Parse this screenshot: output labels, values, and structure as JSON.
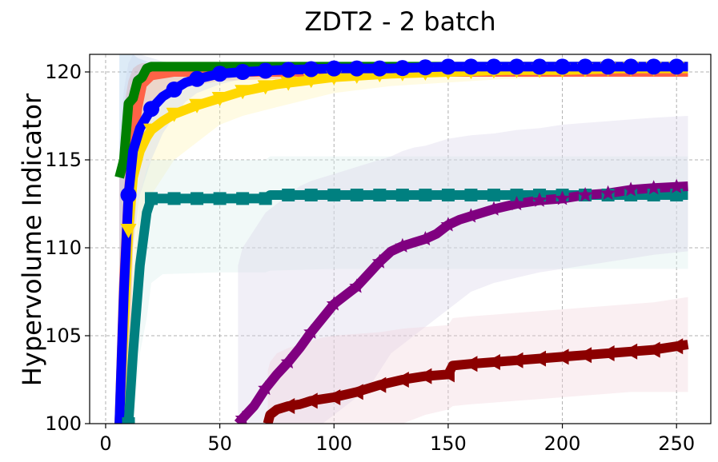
{
  "chart_data": {
    "type": "line",
    "title": "ZDT2 - 2 batch",
    "xlabel": "",
    "ylabel": "Hypervolume Indicator",
    "xlim": [
      -7,
      265
    ],
    "ylim": [
      100,
      121
    ],
    "xticks": [
      0,
      50,
      100,
      150,
      200,
      250
    ],
    "yticks": [
      100,
      105,
      110,
      115,
      120
    ],
    "grid": true,
    "legend": "none",
    "series": [
      {
        "color": "#FF6347",
        "marker": "none",
        "x": [
          6,
          8,
          10,
          12,
          14,
          16,
          20,
          30,
          50,
          100,
          150,
          200,
          255
        ],
        "y": [
          100,
          108,
          113,
          116,
          118,
          119.3,
          119.8,
          120,
          120,
          120,
          120,
          120,
          120
        ],
        "band_low": [
          100,
          100,
          100,
          110,
          114,
          116,
          118,
          119,
          119.5,
          119.7,
          119.8,
          119.8,
          119.8
        ],
        "band_high": [
          115,
          118,
          119.5,
          120.2,
          120.4,
          120.5,
          120.5,
          120.5,
          120.5,
          120.5,
          120.5,
          120.5,
          120.5
        ],
        "band_color": "#FF6347"
      },
      {
        "color": "#008000",
        "marker": "x",
        "x": [
          6,
          8,
          10,
          12,
          14,
          16,
          18,
          20,
          30,
          50,
          100,
          150,
          200,
          255
        ],
        "y": [
          114,
          115,
          118.2,
          118.5,
          119.5,
          119.7,
          120.2,
          120.3,
          120.3,
          120.3,
          120.3,
          120.3,
          120.3,
          120.3
        ],
        "band_low": [
          108,
          110,
          114,
          116,
          118,
          118.8,
          119.5,
          119.8,
          120,
          120,
          120,
          120,
          120,
          120
        ],
        "band_high": [
          121,
          121,
          121,
          121,
          120.8,
          120.7,
          120.6,
          120.5,
          120.5,
          120.5,
          120.5,
          120.5,
          120.5,
          120.5
        ],
        "band_color": "#9EC5E8"
      },
      {
        "color": "#FFD700",
        "marker": "triangle-down",
        "x": [
          6,
          10,
          12,
          15,
          18,
          20,
          25,
          30,
          40,
          50,
          60,
          75,
          100,
          125,
          150,
          175,
          200,
          225,
          255
        ],
        "y": [
          100,
          111,
          114,
          115.5,
          116.3,
          116.7,
          117.2,
          117.6,
          118.1,
          118.5,
          118.9,
          119.3,
          119.7,
          119.9,
          120,
          120.1,
          120.1,
          120.2,
          120.2
        ],
        "band_low": [
          100,
          104,
          108,
          110,
          112,
          113,
          114,
          115,
          116,
          117,
          117.5,
          118,
          118.8,
          119.2,
          119.4,
          119.6,
          119.7,
          119.8,
          119.8
        ],
        "band_high": [
          106,
          118,
          119.5,
          119.8,
          120,
          120,
          120.1,
          120.2,
          120.3,
          120.4,
          120.4,
          120.5,
          120.5,
          120.5,
          120.5,
          120.5,
          120.5,
          120.5,
          120.5
        ],
        "band_color": "#FFF3B0"
      },
      {
        "color": "#0000FF",
        "marker": "circle",
        "x": [
          6,
          8,
          10,
          12,
          15,
          20,
          25,
          30,
          35,
          40,
          50,
          60,
          75,
          100,
          125,
          150,
          175,
          200,
          225,
          255
        ],
        "y": [
          100,
          107.5,
          113,
          115.5,
          116.8,
          117.9,
          118.6,
          119,
          119.4,
          119.6,
          119.9,
          120,
          120.1,
          120.2,
          120.2,
          120.3,
          120.3,
          120.3,
          120.3,
          120.3
        ],
        "band_low": [
          100,
          100,
          104,
          110,
          113,
          115,
          116.5,
          117.5,
          118.3,
          118.8,
          119.3,
          119.6,
          119.8,
          119.9,
          120,
          120,
          120,
          120,
          120,
          120
        ],
        "band_high": [
          116,
          119,
          120.5,
          121,
          121,
          120.8,
          120.6,
          120.5,
          120.5,
          120.5,
          120.5,
          120.5,
          120.5,
          120.5,
          120.5,
          120.5,
          120.5,
          120.5,
          120.5,
          120.5
        ],
        "band_color": "#C9D3EA"
      },
      {
        "color": "#008080",
        "marker": "square",
        "x": [
          10,
          12,
          15,
          18,
          20,
          25,
          50,
          70,
          72,
          100,
          150,
          200,
          255
        ],
        "y": [
          100,
          104,
          109,
          112,
          112.8,
          112.8,
          112.8,
          112.8,
          113,
          113,
          113,
          113,
          113
        ],
        "band_low": [
          100,
          100,
          104,
          106,
          108,
          108.5,
          108.6,
          108.6,
          108.7,
          108.8,
          108.8,
          108.8,
          108.8
        ],
        "band_high": [
          104,
          108,
          113,
          114.5,
          115,
          115,
          115,
          115,
          115.2,
          115.2,
          115.2,
          115.2,
          115.2
        ],
        "band_color": "#D8EEEA"
      },
      {
        "color": "#800080",
        "marker": "star",
        "x": [
          58,
          60,
          65,
          70,
          75,
          80,
          85,
          90,
          95,
          100,
          105,
          110,
          115,
          120,
          125,
          130,
          135,
          140,
          145,
          150,
          155,
          160,
          170,
          180,
          190,
          200,
          210,
          220,
          230,
          240,
          255
        ],
        "y": [
          100,
          100.3,
          101,
          102,
          102.8,
          103.5,
          104.3,
          105.2,
          106,
          106.8,
          107.3,
          107.8,
          108.5,
          109.2,
          109.8,
          110.1,
          110.3,
          110.5,
          110.8,
          111.3,
          111.6,
          111.8,
          112.2,
          112.5,
          112.7,
          112.8,
          113,
          113.1,
          113.3,
          113.4,
          113.5
        ],
        "band_low": [
          100,
          100,
          100,
          100,
          100,
          100,
          100,
          100,
          100,
          100.5,
          101,
          101.5,
          102,
          103,
          104,
          104.5,
          105,
          105.5,
          106,
          106.5,
          107,
          107.5,
          108,
          108.3,
          108.6,
          108.8,
          109,
          109.2,
          109.4,
          109.6,
          109.8
        ],
        "band_high": [
          109,
          110,
          111,
          112,
          112.5,
          113,
          113.5,
          113.8,
          114,
          114.2,
          114.4,
          114.6,
          114.8,
          115,
          115.2,
          115.5,
          115.7,
          115.8,
          116,
          116.2,
          116.3,
          116.4,
          116.5,
          116.7,
          116.8,
          117,
          117.1,
          117.2,
          117.3,
          117.4,
          117.5
        ],
        "band_color": "#D8D2E8"
      },
      {
        "color": "#8B0000",
        "marker": "triangle-left",
        "x": [
          71,
          72,
          75,
          80,
          85,
          90,
          95,
          100,
          110,
          120,
          130,
          140,
          150,
          152,
          160,
          170,
          180,
          190,
          200,
          210,
          220,
          230,
          240,
          255
        ],
        "y": [
          100,
          100.5,
          100.8,
          101,
          101.1,
          101.3,
          101.4,
          101.5,
          101.8,
          102.2,
          102.5,
          102.7,
          102.8,
          103.3,
          103.4,
          103.5,
          103.6,
          103.7,
          103.8,
          103.9,
          104,
          104.1,
          104.2,
          104.5
        ],
        "band_low": [
          100,
          100,
          100,
          100,
          100,
          100,
          100,
          100,
          100,
          100,
          100,
          100.5,
          100.8,
          101,
          101.1,
          101.2,
          101.3,
          101.4,
          101.5,
          101.6,
          101.7,
          101.8,
          101.8,
          101.8
        ],
        "band_high": [
          103,
          103.5,
          104,
          104.3,
          104.5,
          104.7,
          104.9,
          105,
          105.1,
          105.2,
          105.4,
          105.5,
          105.6,
          106,
          106.1,
          106.2,
          106.3,
          106.4,
          106.5,
          106.6,
          106.7,
          106.8,
          106.9,
          107.2
        ],
        "band_color": "#F0D0DA"
      }
    ]
  }
}
